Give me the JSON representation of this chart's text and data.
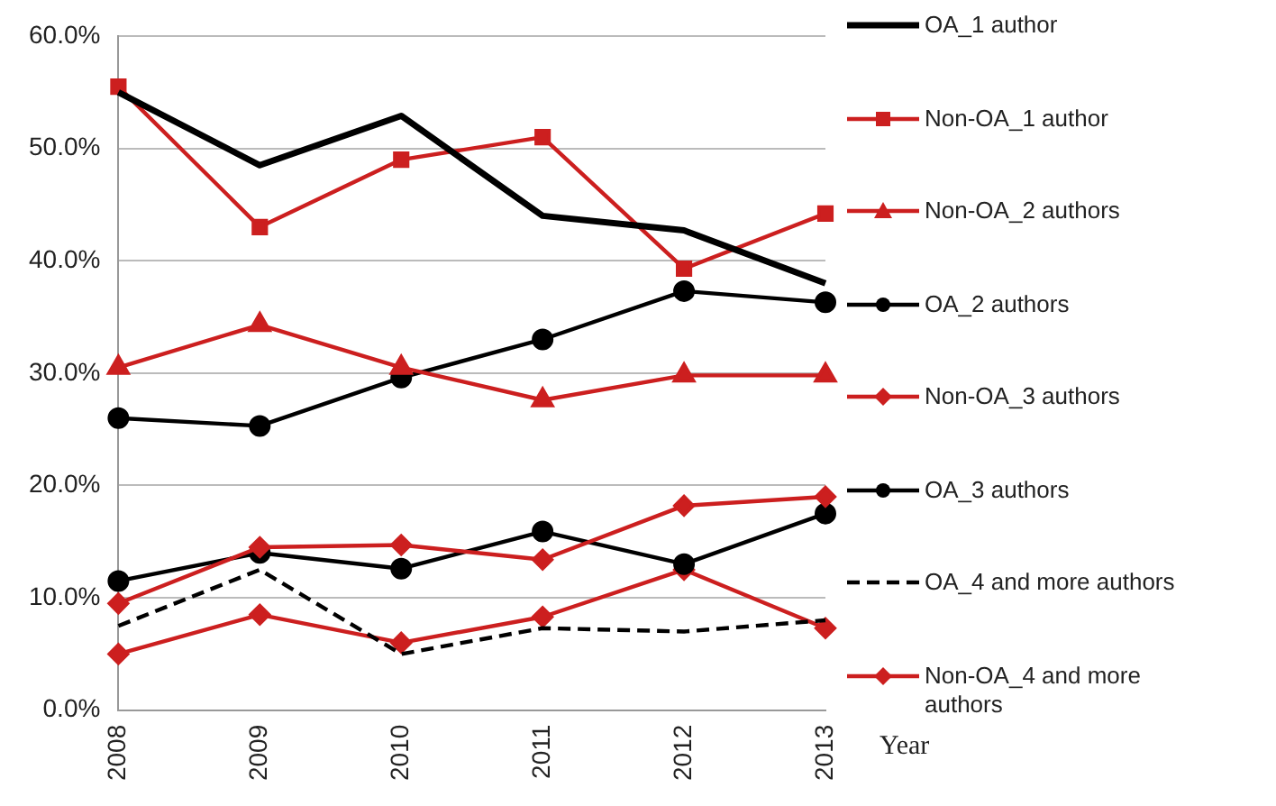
{
  "chart_data": {
    "type": "line",
    "xlabel": "Year",
    "categories": [
      "2008",
      "2009",
      "2010",
      "2011",
      "2012",
      "2013"
    ],
    "ylim": [
      0,
      60
    ],
    "yticks": [
      {
        "value": 0,
        "label": "0.0%"
      },
      {
        "value": 10,
        "label": "10.0%"
      },
      {
        "value": 20,
        "label": "20.0%"
      },
      {
        "value": 30,
        "label": "30.0%"
      },
      {
        "value": 40,
        "label": "40.0%"
      },
      {
        "value": 50,
        "label": "50.0%"
      },
      {
        "value": 60,
        "label": "60.0%"
      }
    ],
    "grid": "y",
    "legend": "right",
    "series": [
      {
        "name": "OA_1 author",
        "color": "#000000",
        "marker": "none",
        "line_style": "solid",
        "values": [
          55,
          48.5,
          52.9,
          44,
          42.7,
          38
        ]
      },
      {
        "name": "Non-OA_1 author",
        "color": "#cc1f1f",
        "marker": "square",
        "line_style": "solid",
        "values": [
          55.5,
          43,
          49,
          51,
          39.3,
          44.2
        ]
      },
      {
        "name": "Non-OA_2 authors",
        "color": "#cc1f1f",
        "marker": "triangle",
        "line_style": "solid",
        "values": [
          30.5,
          34.3,
          30.5,
          27.6,
          29.8,
          29.8
        ]
      },
      {
        "name": "OA_2 authors",
        "color": "#000000",
        "marker": "circle",
        "line_style": "solid",
        "values": [
          26,
          25.3,
          29.6,
          33,
          37.3,
          36.3
        ]
      },
      {
        "name": "Non-OA_3 authors",
        "color": "#cc1f1f",
        "marker": "diamond",
        "line_style": "solid",
        "values": [
          9.5,
          14.5,
          14.7,
          13.4,
          18.2,
          19
        ]
      },
      {
        "name": "OA_3 authors",
        "color": "#000000",
        "marker": "circle",
        "line_style": "solid",
        "values": [
          11.5,
          14,
          12.6,
          15.9,
          13,
          17.5
        ]
      },
      {
        "name": "OA_4 and more authors",
        "color": "#000000",
        "marker": "none",
        "line_style": "dashed",
        "values": [
          7.5,
          12.5,
          5,
          7.3,
          7,
          8
        ]
      },
      {
        "name": "Non-OA_4 and more authors",
        "color": "#cc1f1f",
        "marker": "diamond",
        "line_style": "solid",
        "values": [
          5,
          8.5,
          6,
          8.3,
          12.5,
          7.3
        ]
      }
    ]
  }
}
